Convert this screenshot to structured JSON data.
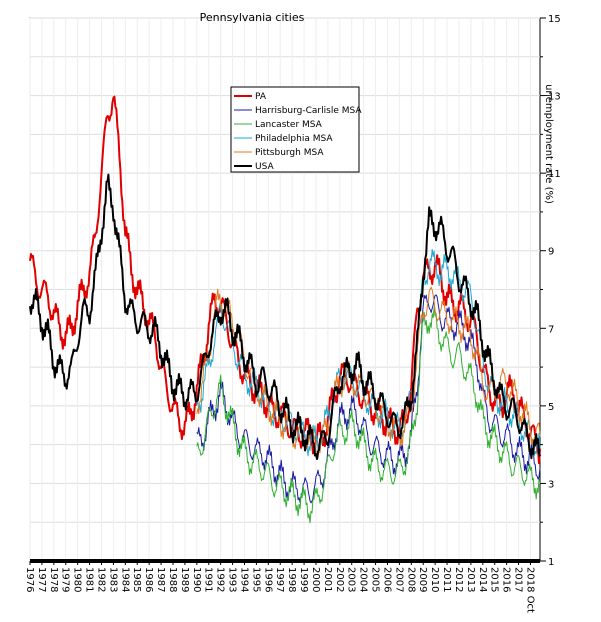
{
  "chart_data": {
    "type": "line",
    "title": "Pennsylvania cities",
    "xlabel": "",
    "ylabel": "unemployment rate (%)",
    "xlim": [
      1976,
      2018.8
    ],
    "ylim": [
      1,
      15
    ],
    "y_axis_side": "right",
    "y_ticks": [
      1,
      3,
      5,
      7,
      9,
      11,
      13,
      15
    ],
    "x_tick_labels": [
      "1976",
      "1977",
      "1978",
      "1979",
      "1980",
      "1981",
      "1982",
      "1983",
      "1984",
      "1985",
      "1986",
      "1987",
      "1988",
      "1989",
      "1990",
      "1991",
      "1992",
      "1993",
      "1994",
      "1995",
      "1996",
      "1997",
      "1998",
      "1999",
      "2000",
      "2001",
      "2002",
      "2003",
      "2004",
      "2005",
      "2006",
      "2007",
      "2008",
      "2009",
      "2010",
      "2011",
      "2012",
      "2013",
      "2014",
      "2015",
      "2016",
      "2017",
      "2018 Oct"
    ],
    "grid": true,
    "legend_position": "top-center",
    "series": [
      {
        "name": "PA",
        "color": "#e00000",
        "width": 2,
        "x": [
          1976,
          1976.5,
          1977,
          1977.5,
          1978,
          1978.5,
          1979,
          1979.5,
          1980,
          1980.5,
          1981,
          1981.5,
          1982,
          1982.5,
          1983,
          1983.5,
          1984,
          1984.5,
          1985,
          1985.5,
          1986,
          1986.5,
          1987,
          1987.5,
          1988,
          1988.5,
          1989,
          1989.5,
          1990,
          1990.5,
          1991,
          1991.5,
          1992,
          1992.5,
          1993,
          1993.5,
          1994,
          1994.5,
          1995,
          1995.5,
          1996,
          1996.5,
          1997,
          1997.5,
          1998,
          1998.5,
          1999,
          1999.5,
          2000,
          2000.5,
          2001,
          2001.5,
          2002,
          2002.5,
          2003,
          2003.5,
          2004,
          2004.5,
          2005,
          2005.5,
          2006,
          2006.5,
          2007,
          2007.5,
          2008,
          2008.5,
          2009,
          2009.5,
          2010,
          2010.5,
          2011,
          2011.5,
          2012,
          2012.5,
          2013,
          2013.5,
          2014,
          2014.5,
          2015,
          2015.5,
          2016,
          2016.5,
          2017,
          2017.5,
          2018,
          2018.8
        ],
        "y": [
          8.8,
          8.2,
          8.0,
          7.8,
          7.4,
          7.0,
          6.8,
          7.0,
          7.6,
          8.0,
          8.4,
          9.4,
          11.0,
          12.5,
          13.0,
          11.5,
          9.5,
          8.5,
          8.0,
          7.6,
          7.2,
          6.8,
          6.0,
          5.4,
          5.0,
          4.6,
          4.5,
          4.8,
          5.4,
          6.2,
          7.0,
          7.8,
          7.6,
          7.2,
          6.6,
          6.2,
          5.8,
          5.6,
          5.4,
          5.3,
          5.0,
          4.8,
          4.8,
          4.6,
          4.4,
          4.3,
          4.3,
          4.3,
          4.1,
          4.2,
          4.6,
          5.3,
          5.7,
          5.8,
          5.6,
          5.4,
          5.2,
          5.1,
          4.8,
          4.7,
          4.6,
          4.4,
          4.4,
          4.6,
          5.5,
          7.5,
          8.3,
          8.5,
          8.6,
          8.3,
          7.8,
          7.6,
          7.6,
          7.4,
          7.2,
          6.8,
          5.9,
          5.5,
          5.1,
          5.0,
          5.3,
          5.4,
          4.9,
          4.7,
          4.3,
          3.9
        ]
      },
      {
        "name": "Harrisburg-Carlisle MSA",
        "color": "#1a1aa0",
        "width": 1,
        "x": [
          1990,
          1990.5,
          1991,
          1991.5,
          1992,
          1992.5,
          1993,
          1993.5,
          1994,
          1994.5,
          1995,
          1995.5,
          1996,
          1996.5,
          1997,
          1997.5,
          1998,
          1998.5,
          1999,
          1999.5,
          2000,
          2000.5,
          2001,
          2001.5,
          2002,
          2002.5,
          2003,
          2003.5,
          2004,
          2004.5,
          2005,
          2005.5,
          2006,
          2006.5,
          2007,
          2007.5,
          2008,
          2008.5,
          2009,
          2009.5,
          2010,
          2010.5,
          2011,
          2011.5,
          2012,
          2012.5,
          2013,
          2013.5,
          2014,
          2014.5,
          2015,
          2015.5,
          2016,
          2016.5,
          2017,
          2017.5,
          2018,
          2018.8
        ],
        "y": [
          4.0,
          4.2,
          4.6,
          5.0,
          5.3,
          5.0,
          4.6,
          4.3,
          4.1,
          4.0,
          3.8,
          3.8,
          3.6,
          3.4,
          3.2,
          3.0,
          2.9,
          2.9,
          2.8,
          2.8,
          2.9,
          3.2,
          3.6,
          4.2,
          4.6,
          4.8,
          4.9,
          4.7,
          4.4,
          4.1,
          3.9,
          3.8,
          3.7,
          3.6,
          3.6,
          3.8,
          4.2,
          5.6,
          7.4,
          7.8,
          7.6,
          7.3,
          7.2,
          7.1,
          7.1,
          6.9,
          6.6,
          6.2,
          5.2,
          4.7,
          4.5,
          4.3,
          4.2,
          4.0,
          3.8,
          3.7,
          3.6,
          3.4
        ]
      },
      {
        "name": "Lancaster MSA",
        "color": "#30b030",
        "width": 1,
        "x": [
          1990,
          1990.5,
          1991,
          1991.5,
          1992,
          1992.5,
          1993,
          1993.5,
          1994,
          1994.5,
          1995,
          1995.5,
          1996,
          1996.5,
          1997,
          1997.5,
          1998,
          1998.5,
          1999,
          1999.5,
          2000,
          2000.5,
          2001,
          2001.5,
          2002,
          2002.5,
          2003,
          2003.5,
          2004,
          2004.5,
          2005,
          2005.5,
          2006,
          2006.5,
          2007,
          2007.5,
          2008,
          2008.5,
          2009,
          2009.5,
          2010,
          2010.5,
          2011,
          2011.5,
          2012,
          2012.5,
          2013,
          2013.5,
          2014,
          2014.5,
          2015,
          2015.5,
          2016,
          2016.5,
          2017,
          2017.5,
          2018,
          2018.8
        ],
        "y": [
          3.7,
          4.1,
          4.6,
          5.1,
          5.4,
          5.0,
          4.5,
          4.1,
          3.8,
          3.6,
          3.5,
          3.4,
          3.2,
          3.0,
          2.9,
          2.8,
          2.7,
          2.6,
          2.5,
          2.4,
          2.5,
          2.9,
          3.4,
          4.0,
          4.3,
          4.4,
          4.5,
          4.3,
          4.0,
          3.7,
          3.5,
          3.4,
          3.3,
          3.3,
          3.3,
          3.6,
          4.0,
          5.2,
          7.0,
          7.3,
          7.1,
          6.8,
          6.5,
          6.3,
          6.3,
          6.0,
          5.7,
          5.3,
          4.6,
          4.3,
          4.1,
          3.9,
          3.7,
          3.5,
          3.4,
          3.3,
          3.1,
          3.0
        ]
      },
      {
        "name": "Philadelphia MSA",
        "color": "#1ea8d0",
        "width": 1,
        "x": [
          1990,
          1990.5,
          1991,
          1991.5,
          1992,
          1992.5,
          1993,
          1993.5,
          1994,
          1994.5,
          1995,
          1995.5,
          1996,
          1996.5,
          1997,
          1997.5,
          1998,
          1998.5,
          1999,
          1999.5,
          2000,
          2000.5,
          2001,
          2001.5,
          2002,
          2002.5,
          2003,
          2003.5,
          2004,
          2004.5,
          2005,
          2005.5,
          2006,
          2006.5,
          2007,
          2007.5,
          2008,
          2008.5,
          2009,
          2009.5,
          2010,
          2010.5,
          2011,
          2011.5,
          2012,
          2012.5,
          2013,
          2013.5,
          2014,
          2014.5,
          2015,
          2015.5,
          2016,
          2016.5,
          2017,
          2017.5,
          2018,
          2018.8
        ],
        "y": [
          5.0,
          5.4,
          6.0,
          6.8,
          7.4,
          7.2,
          6.6,
          6.2,
          5.8,
          5.6,
          5.5,
          5.3,
          5.0,
          4.8,
          4.7,
          4.6,
          4.5,
          4.4,
          4.2,
          4.1,
          4.1,
          4.3,
          4.7,
          5.3,
          5.7,
          5.8,
          5.7,
          5.5,
          5.3,
          5.1,
          4.9,
          4.8,
          4.7,
          4.5,
          4.4,
          4.7,
          5.2,
          6.6,
          8.2,
          8.7,
          8.6,
          8.5,
          8.5,
          8.4,
          8.2,
          8.0,
          7.8,
          7.1,
          6.1,
          5.6,
          5.3,
          5.1,
          5.0,
          4.8,
          4.6,
          4.4,
          4.2,
          3.9
        ]
      },
      {
        "name": "Pittsburgh MSA",
        "color": "#e07820",
        "width": 1,
        "x": [
          1990,
          1990.5,
          1991,
          1991.5,
          1992,
          1992.5,
          1993,
          1993.5,
          1994,
          1994.5,
          1995,
          1995.5,
          1996,
          1996.5,
          1997,
          1997.5,
          1998,
          1998.5,
          1999,
          1999.5,
          2000,
          2000.5,
          2001,
          2001.5,
          2002,
          2002.5,
          2003,
          2003.5,
          2004,
          2004.5,
          2005,
          2005.5,
          2006,
          2006.5,
          2007,
          2007.5,
          2008,
          2008.5,
          2009,
          2009.5,
          2010,
          2010.5,
          2011,
          2011.5,
          2012,
          2012.5,
          2013,
          2013.5,
          2014,
          2014.5,
          2015,
          2015.5,
          2016,
          2016.5,
          2017,
          2017.5,
          2018,
          2018.8
        ],
        "y": [
          5.0,
          5.6,
          6.4,
          7.4,
          7.8,
          7.5,
          7.2,
          6.8,
          6.2,
          5.8,
          5.5,
          5.2,
          5.0,
          4.8,
          4.6,
          4.5,
          4.3,
          4.2,
          4.2,
          4.2,
          4.0,
          4.1,
          4.5,
          5.2,
          5.6,
          5.8,
          5.7,
          5.5,
          5.4,
          5.2,
          5.0,
          4.8,
          4.6,
          4.4,
          4.3,
          4.5,
          5.0,
          6.3,
          7.5,
          7.8,
          7.6,
          7.4,
          7.3,
          7.2,
          7.1,
          7.0,
          6.8,
          6.3,
          5.6,
          5.3,
          5.4,
          5.6,
          5.6,
          5.4,
          5.0,
          4.8,
          4.4,
          4.2
        ]
      },
      {
        "name": "USA",
        "color": "#000000",
        "width": 2,
        "x": [
          1976,
          1976.5,
          1977,
          1977.5,
          1978,
          1978.5,
          1979,
          1979.5,
          1980,
          1980.5,
          1981,
          1981.5,
          1982,
          1982.5,
          1983,
          1983.5,
          1984,
          1984.5,
          1985,
          1985.5,
          1986,
          1986.5,
          1987,
          1987.5,
          1988,
          1988.5,
          1989,
          1989.5,
          1990,
          1990.5,
          1991,
          1991.5,
          1992,
          1992.5,
          1993,
          1993.5,
          1994,
          1994.5,
          1995,
          1995.5,
          1996,
          1996.5,
          1997,
          1997.5,
          1998,
          1998.5,
          1999,
          1999.5,
          2000,
          2000.5,
          2001,
          2001.5,
          2002,
          2002.5,
          2003,
          2003.5,
          2004,
          2004.5,
          2005,
          2005.5,
          2006,
          2006.5,
          2007,
          2007.5,
          2008,
          2008.5,
          2009,
          2009.5,
          2010,
          2010.5,
          2011,
          2011.5,
          2012,
          2012.5,
          2013,
          2013.5,
          2014,
          2014.5,
          2015,
          2015.5,
          2016,
          2016.5,
          2017,
          2017.5,
          2018,
          2018.8
        ],
        "y": [
          7.8,
          7.6,
          7.2,
          6.8,
          6.2,
          5.9,
          5.8,
          5.9,
          6.8,
          7.4,
          7.5,
          8.3,
          9.6,
          10.6,
          10.2,
          8.9,
          7.8,
          7.4,
          7.2,
          7.1,
          7.0,
          6.9,
          6.5,
          6.0,
          5.6,
          5.4,
          5.3,
          5.3,
          5.4,
          5.9,
          6.6,
          7.0,
          7.5,
          7.4,
          7.0,
          6.7,
          6.3,
          6.0,
          5.6,
          5.7,
          5.5,
          5.3,
          5.0,
          4.8,
          4.5,
          4.4,
          4.3,
          4.1,
          4.0,
          4.0,
          4.3,
          5.0,
          5.7,
          5.8,
          6.0,
          6.0,
          5.7,
          5.5,
          5.3,
          5.0,
          4.8,
          4.5,
          4.5,
          4.7,
          5.3,
          6.5,
          8.5,
          9.7,
          9.7,
          9.5,
          9.1,
          8.8,
          8.3,
          8.0,
          7.7,
          7.3,
          6.7,
          6.1,
          5.7,
          5.2,
          5.0,
          4.9,
          4.7,
          4.3,
          4.1,
          3.7
        ]
      }
    ]
  }
}
